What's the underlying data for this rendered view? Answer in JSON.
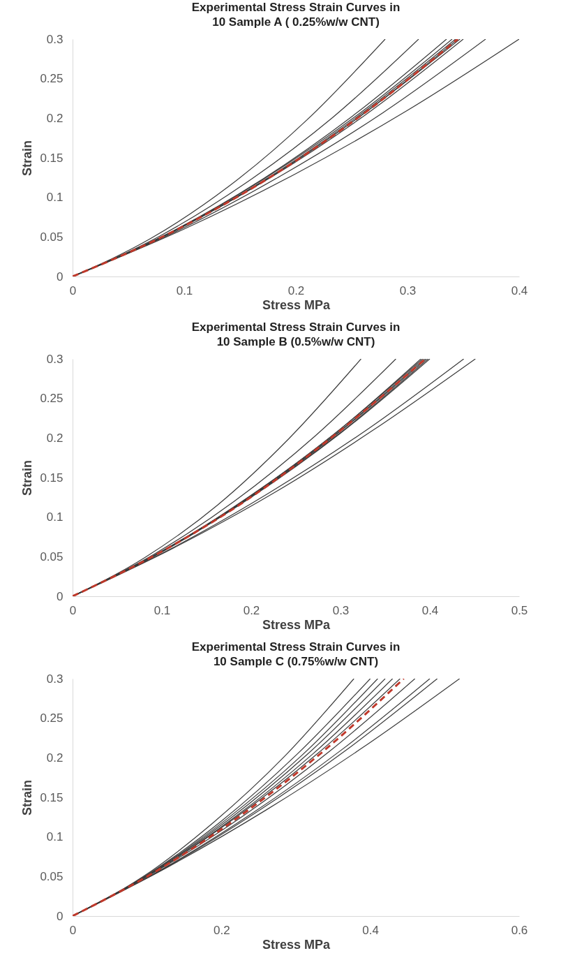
{
  "chart_data": [
    {
      "type": "line",
      "title": "Experimental  Stress Strain Curves in\n10 Sample A ( 0.25%w/w CNT)",
      "xlabel": "Stress MPa",
      "ylabel": "Strain",
      "xlim": [
        0,
        0.4
      ],
      "xticks": [
        0,
        0.1,
        0.2,
        0.3,
        0.4
      ],
      "ylim": [
        0,
        0.3
      ],
      "yticks": [
        0,
        0.05,
        0.1,
        0.15,
        0.2,
        0.25,
        0.3
      ],
      "grid": false,
      "line_style": "solid",
      "series": [
        {
          "color": "#3a3a3a",
          "x": [
            0,
            0.07,
            0.14,
            0.21,
            0.28
          ],
          "values": [
            0,
            0.048,
            0.114,
            0.198,
            0.3
          ]
        },
        {
          "color": "#3a3a3a",
          "x": [
            0,
            0.078,
            0.155,
            0.233,
            0.31
          ],
          "values": [
            0,
            0.051,
            0.118,
            0.201,
            0.3
          ]
        },
        {
          "color": "#3a3a3a",
          "x": [
            0,
            0.084,
            0.168,
            0.251,
            0.335
          ],
          "values": [
            0,
            0.053,
            0.121,
            0.203,
            0.3
          ]
        },
        {
          "color": "#3a3a3a",
          "x": [
            0,
            0.085,
            0.17,
            0.255,
            0.34
          ],
          "values": [
            0,
            0.054,
            0.122,
            0.204,
            0.3
          ]
        },
        {
          "color": "#3a3a3a",
          "x": [
            0,
            0.086,
            0.172,
            0.257,
            0.343
          ],
          "values": [
            0,
            0.054,
            0.122,
            0.204,
            0.3
          ]
        },
        {
          "color": "#3a3a3a",
          "x": [
            0,
            0.086,
            0.173,
            0.259,
            0.345
          ],
          "values": [
            0,
            0.054,
            0.122,
            0.204,
            0.3
          ]
        },
        {
          "color": "#3a3a3a",
          "x": [
            0,
            0.087,
            0.174,
            0.26,
            0.347
          ],
          "values": [
            0,
            0.055,
            0.123,
            0.205,
            0.3
          ]
        },
        {
          "color": "#3a3a3a",
          "x": [
            0,
            0.088,
            0.175,
            0.263,
            0.35
          ],
          "values": [
            0,
            0.055,
            0.123,
            0.205,
            0.3
          ]
        },
        {
          "color": "#3a3a3a",
          "x": [
            0,
            0.093,
            0.185,
            0.278,
            0.37
          ],
          "values": [
            0,
            0.057,
            0.126,
            0.207,
            0.3
          ]
        },
        {
          "color": "#3a3a3a",
          "x": [
            0,
            0.1,
            0.2,
            0.3,
            0.4
          ],
          "values": [
            0,
            0.06,
            0.13,
            0.21,
            0.3
          ]
        },
        {
          "color": "#c0392b",
          "line_style": "dashed",
          "x": [
            0,
            0.086,
            0.173,
            0.259,
            0.345
          ],
          "values": [
            0,
            0.054,
            0.122,
            0.204,
            0.3
          ]
        }
      ]
    },
    {
      "type": "line",
      "title": "Experimental  Stress Strain Curves in\n10 Sample B (0.5%w/w CNT)",
      "xlabel": "Stress MPa",
      "ylabel": "Strain",
      "xlim": [
        0,
        0.5
      ],
      "xticks": [
        0,
        0.1,
        0.2,
        0.3,
        0.4,
        0.5
      ],
      "ylim": [
        0,
        0.3
      ],
      "yticks": [
        0,
        0.05,
        0.1,
        0.15,
        0.2,
        0.25,
        0.3
      ],
      "grid": false,
      "line_style": "solid",
      "series": [
        {
          "color": "#3a3a3a",
          "x": [
            0,
            0.081,
            0.162,
            0.242,
            0.323
          ],
          "values": [
            0,
            0.049,
            0.115,
            0.199,
            0.3
          ]
        },
        {
          "color": "#3a3a3a",
          "x": [
            0,
            0.091,
            0.181,
            0.272,
            0.362
          ],
          "values": [
            0,
            0.053,
            0.12,
            0.203,
            0.3
          ]
        },
        {
          "color": "#3a3a3a",
          "x": [
            0,
            0.098,
            0.195,
            0.293,
            0.39
          ],
          "values": [
            0,
            0.055,
            0.124,
            0.205,
            0.3
          ]
        },
        {
          "color": "#3a3a3a",
          "x": [
            0,
            0.098,
            0.196,
            0.294,
            0.392
          ],
          "values": [
            0,
            0.056,
            0.124,
            0.206,
            0.3
          ]
        },
        {
          "color": "#3a3a3a",
          "x": [
            0,
            0.099,
            0.197,
            0.296,
            0.394
          ],
          "values": [
            0,
            0.056,
            0.124,
            0.206,
            0.3
          ]
        },
        {
          "color": "#3a3a3a",
          "x": [
            0,
            0.099,
            0.198,
            0.297,
            0.396
          ],
          "values": [
            0,
            0.056,
            0.125,
            0.206,
            0.3
          ]
        },
        {
          "color": "#3a3a3a",
          "x": [
            0,
            0.1,
            0.199,
            0.299,
            0.398
          ],
          "values": [
            0,
            0.056,
            0.125,
            0.206,
            0.3
          ]
        },
        {
          "color": "#3a3a3a",
          "x": [
            0,
            0.1,
            0.2,
            0.3,
            0.4
          ],
          "values": [
            0,
            0.056,
            0.125,
            0.206,
            0.3
          ]
        },
        {
          "color": "#3a3a3a",
          "x": [
            0,
            0.11,
            0.219,
            0.329,
            0.438
          ],
          "values": [
            0,
            0.06,
            0.13,
            0.21,
            0.3
          ]
        },
        {
          "color": "#3a3a3a",
          "x": [
            0,
            0.113,
            0.226,
            0.338,
            0.451
          ],
          "values": [
            0,
            0.061,
            0.131,
            0.211,
            0.3
          ]
        },
        {
          "color": "#c0392b",
          "line_style": "dashed",
          "x": [
            0,
            0.099,
            0.198,
            0.296,
            0.395
          ],
          "values": [
            0,
            0.056,
            0.124,
            0.206,
            0.3
          ]
        }
      ]
    },
    {
      "type": "line",
      "title": "Experimental  Stress Strain Curves in\n10 Sample C (0.75%w/w CNT)",
      "xlabel": "Stress MPa",
      "ylabel": "Strain",
      "xlim": [
        0,
        0.6
      ],
      "xticks": [
        0,
        0.2,
        0.4,
        0.6
      ],
      "ylim": [
        0,
        0.3
      ],
      "yticks": [
        0,
        0.05,
        0.1,
        0.15,
        0.2,
        0.25,
        0.3
      ],
      "grid": false,
      "line_style": "solid",
      "series": [
        {
          "color": "#3a3a3a",
          "x": [
            0,
            0.095,
            0.189,
            0.284,
            0.378
          ],
          "values": [
            0,
            0.05,
            0.118,
            0.201,
            0.3
          ]
        },
        {
          "color": "#3a3a3a",
          "x": [
            0,
            0.1,
            0.2,
            0.3,
            0.4
          ],
          "values": [
            0,
            0.052,
            0.12,
            0.203,
            0.3
          ]
        },
        {
          "color": "#3a3a3a",
          "x": [
            0,
            0.103,
            0.205,
            0.308,
            0.41
          ],
          "values": [
            0,
            0.053,
            0.121,
            0.203,
            0.3
          ]
        },
        {
          "color": "#3a3a3a",
          "x": [
            0,
            0.105,
            0.21,
            0.315,
            0.42
          ],
          "values": [
            0,
            0.054,
            0.122,
            0.204,
            0.3
          ]
        },
        {
          "color": "#3a3a3a",
          "x": [
            0,
            0.108,
            0.215,
            0.323,
            0.43
          ],
          "values": [
            0,
            0.055,
            0.123,
            0.205,
            0.3
          ]
        },
        {
          "color": "#3a3a3a",
          "x": [
            0,
            0.11,
            0.22,
            0.33,
            0.44
          ],
          "values": [
            0,
            0.056,
            0.125,
            0.206,
            0.3
          ]
        },
        {
          "color": "#3a3a3a",
          "x": [
            0,
            0.115,
            0.23,
            0.345,
            0.46
          ],
          "values": [
            0,
            0.058,
            0.127,
            0.208,
            0.3
          ]
        },
        {
          "color": "#3a3a3a",
          "x": [
            0,
            0.12,
            0.24,
            0.36,
            0.48
          ],
          "values": [
            0,
            0.059,
            0.129,
            0.209,
            0.3
          ]
        },
        {
          "color": "#3a3a3a",
          "x": [
            0,
            0.123,
            0.245,
            0.368,
            0.49
          ],
          "values": [
            0,
            0.06,
            0.13,
            0.21,
            0.3
          ]
        },
        {
          "color": "#3a3a3a",
          "x": [
            0,
            0.13,
            0.26,
            0.39,
            0.52
          ],
          "values": [
            0,
            0.063,
            0.134,
            0.213,
            0.3
          ]
        },
        {
          "color": "#c0392b",
          "line_style": "dashed",
          "x": [
            0,
            0.111,
            0.223,
            0.334,
            0.445
          ],
          "values": [
            0,
            0.056,
            0.125,
            0.206,
            0.3
          ]
        }
      ]
    }
  ]
}
